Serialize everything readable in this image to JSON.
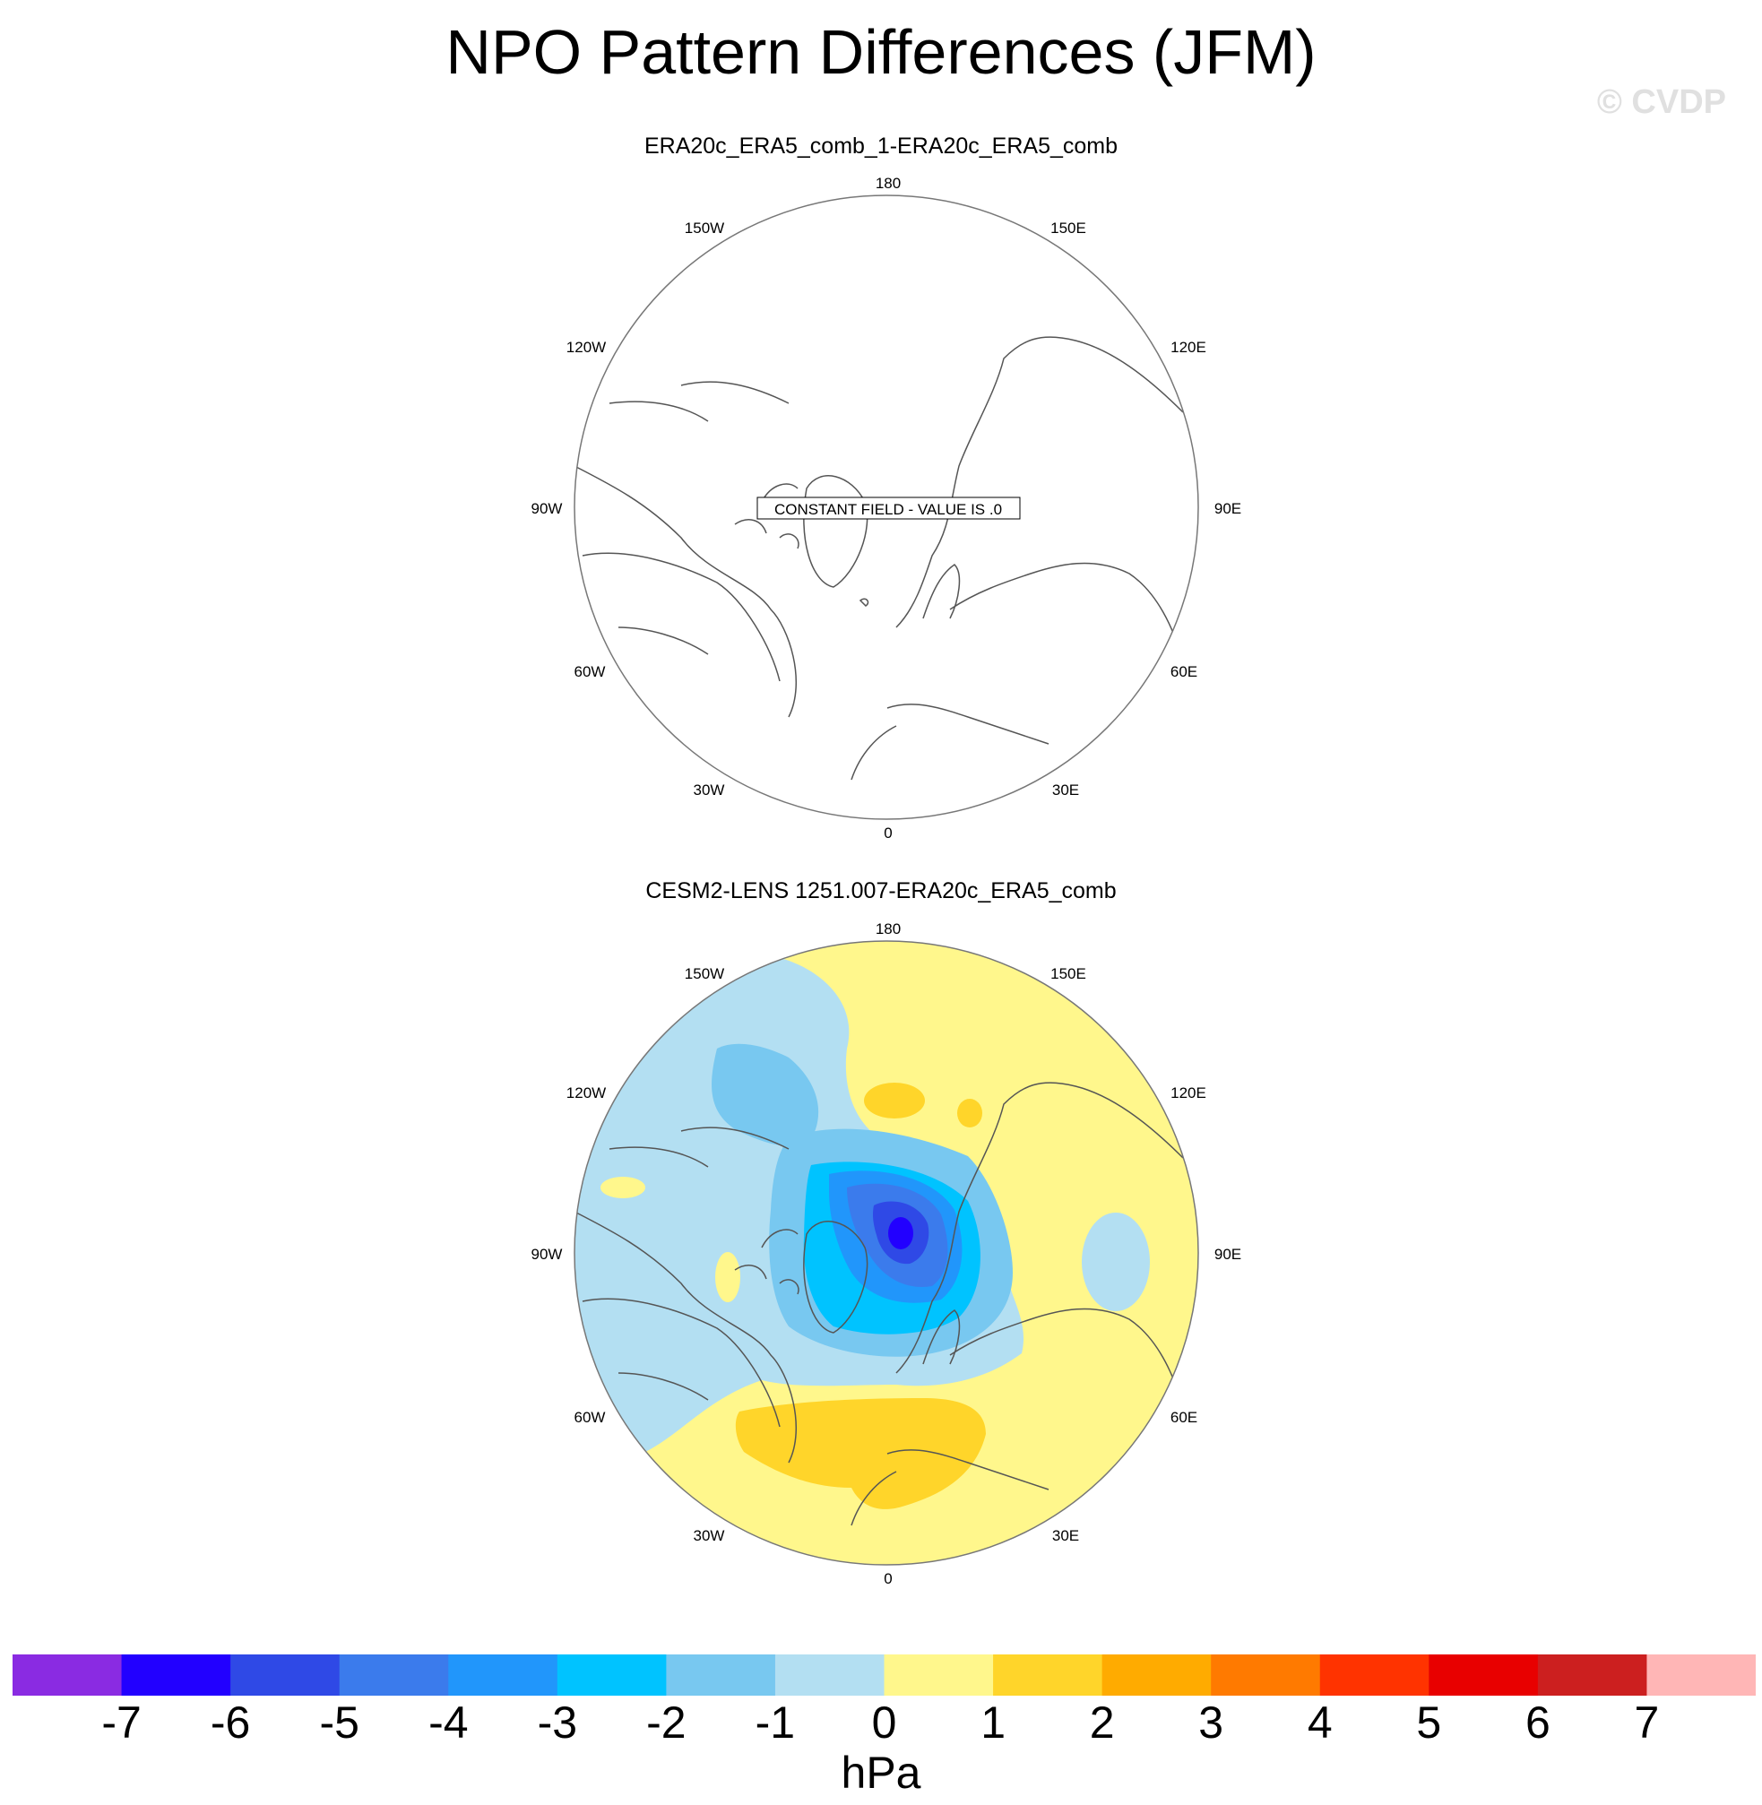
{
  "title": "NPO Pattern Differences (JFM)",
  "watermark": "© CVDP",
  "panels": [
    {
      "title": "ERA20c_ERA5_comb_1-ERA20c_ERA5_comb",
      "note": "CONSTANT FIELD - VALUE IS .0",
      "lon_labels": [
        "180",
        "150E",
        "120E",
        "90E",
        "60E",
        "30E",
        "0",
        "30W",
        "60W",
        "90W",
        "120W",
        "150W"
      ]
    },
    {
      "title": "CESM2-LENS 1251.007-ERA20c_ERA5_comb",
      "lon_labels": [
        "180",
        "150E",
        "120E",
        "90E",
        "60E",
        "30E",
        "0",
        "30W",
        "60W",
        "90W",
        "120W",
        "150W"
      ]
    }
  ],
  "colorbar": {
    "units": "hPa",
    "labels": [
      "-7",
      "-6",
      "-5",
      "-4",
      "-3",
      "-2",
      "-1",
      "0",
      "1",
      "2",
      "3",
      "4",
      "5",
      "6",
      "7"
    ],
    "colors": [
      "#8a2be2",
      "#2200ff",
      "#2f49e6",
      "#3b7bec",
      "#2196fb",
      "#00c3ff",
      "#78c8f0",
      "#b3dff2",
      "#fff78c",
      "#ffd52a",
      "#ffab00",
      "#ff7a00",
      "#ff3300",
      "#e80000",
      "#cc1f1f",
      "#ffb6b6"
    ]
  }
}
